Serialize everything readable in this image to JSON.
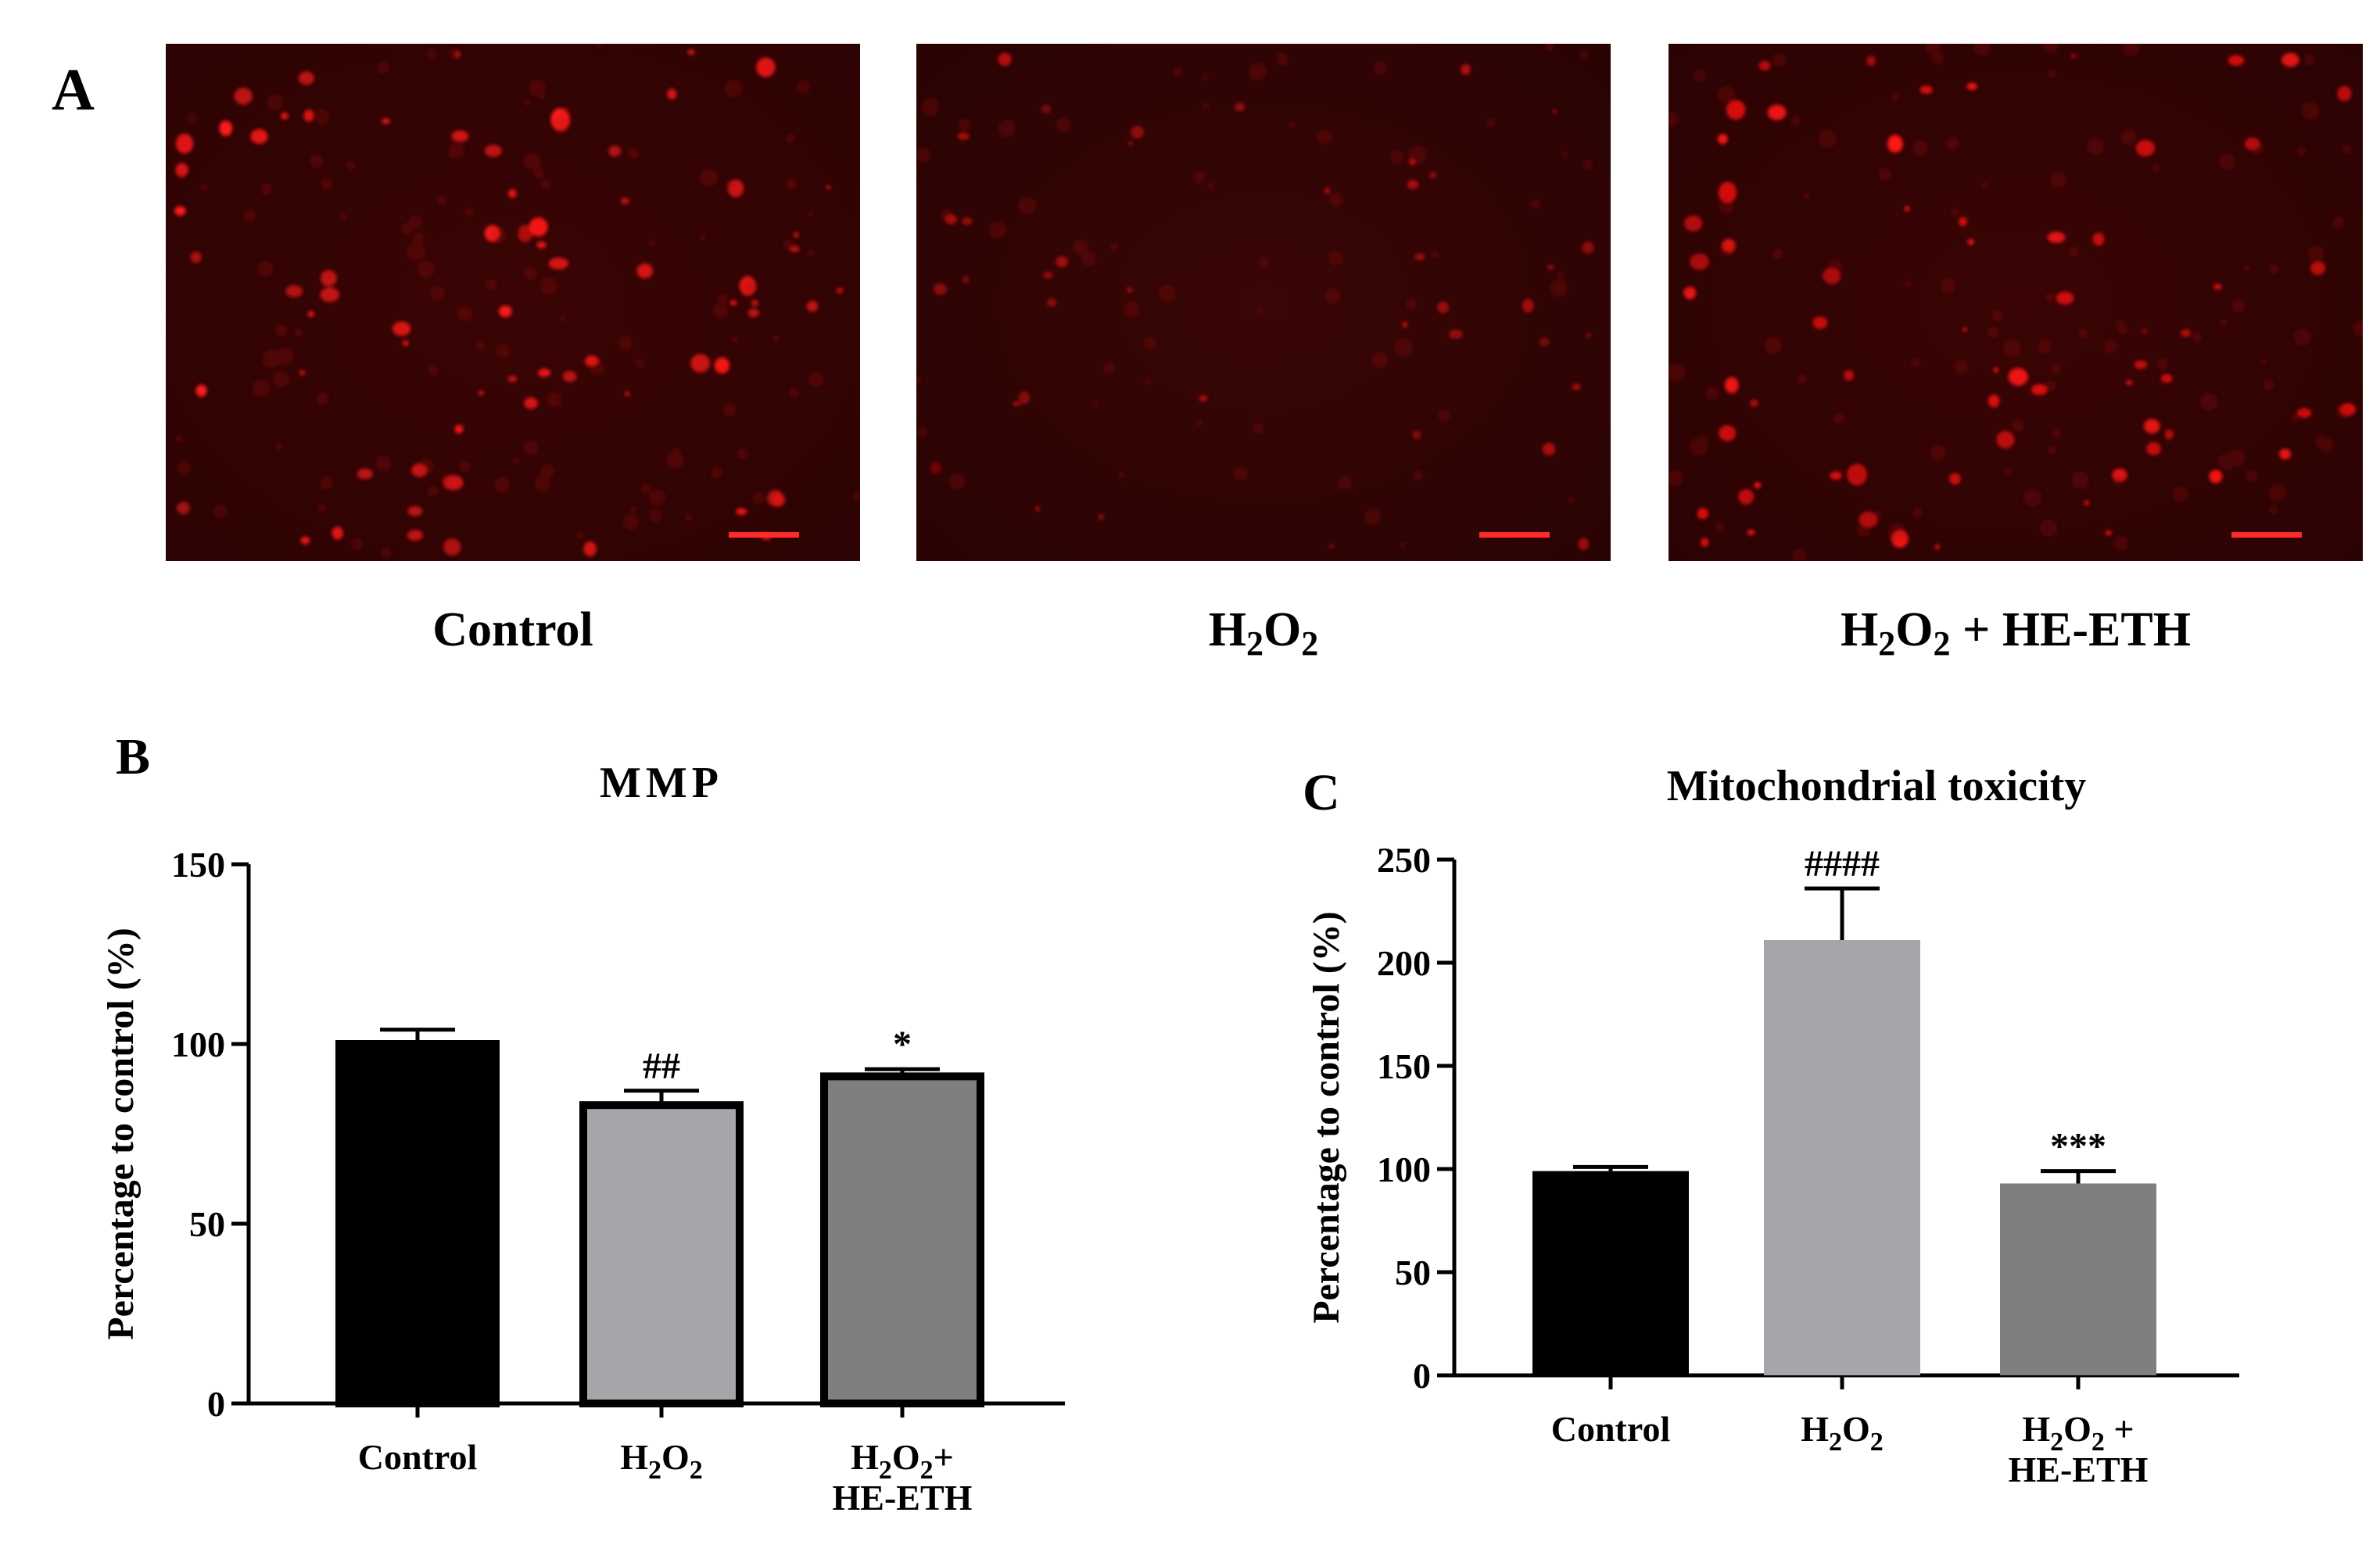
{
  "panel_a": {
    "letter": "A",
    "images": [
      {
        "label_html": "Control",
        "brightness": "bright",
        "cell_color": "#ff1a1a",
        "bg_color": "#2e0303"
      },
      {
        "label_html": "H<tspan>2</tspan>O<tspan>2</tspan>",
        "brightness": "dim",
        "cell_color": "#e61010",
        "bg_color": "#2a0303"
      },
      {
        "label_html": "H<tspan>2</tspan>O<tspan>2</tspan> + HE-ETH",
        "brightness": "medium",
        "cell_color": "#ff1414",
        "bg_color": "#2c0303"
      }
    ],
    "labels": [
      "Control",
      "H2O2",
      "H2O2 + HE-ETH"
    ],
    "scale_bar_color": "#ff2a2a"
  },
  "chart_data": [
    {
      "panel": "B",
      "type": "bar",
      "title": "MMP",
      "ylabel": "Percentage to control (%)",
      "xlabel": "",
      "ylim": [
        0,
        150
      ],
      "yticks": [
        0,
        50,
        100,
        150
      ],
      "categories": [
        "Control",
        "H2O2",
        "H2O2+ HE-ETH"
      ],
      "values": [
        100,
        83,
        91
      ],
      "errors": [
        4,
        4,
        2
      ],
      "annotations": [
        "",
        "##",
        "*"
      ],
      "bar_colors": [
        "#000000",
        "#a5a5aa",
        "#7f7f7f"
      ],
      "bar_outline": "#000000"
    },
    {
      "panel": "C",
      "type": "bar",
      "title": "Mitochondrial toxicity",
      "ylabel": "Percentage to control (%)",
      "xlabel": "",
      "ylim": [
        0,
        250
      ],
      "yticks": [
        0,
        50,
        100,
        150,
        200,
        250
      ],
      "categories": [
        "Control",
        "H2O2",
        "H2O2 + HE-ETH"
      ],
      "values": [
        99,
        211,
        93
      ],
      "errors": [
        2,
        25,
        6
      ],
      "annotations": [
        "",
        "####",
        "***"
      ],
      "bar_colors": [
        "#000000",
        "#a5a5aa",
        "#7f7f7f"
      ],
      "bar_outline": "none"
    }
  ]
}
